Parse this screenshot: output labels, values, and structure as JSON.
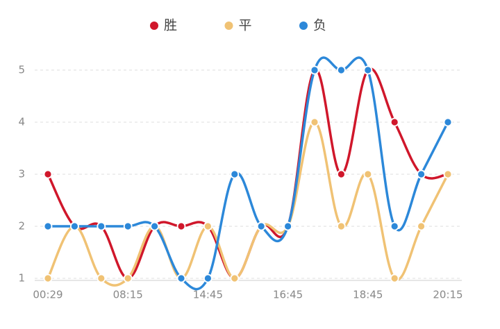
{
  "chart_data": {
    "type": "line",
    "categories": [
      "00:29",
      null,
      null,
      "08:15",
      null,
      null,
      "14:45",
      null,
      null,
      "16:45",
      null,
      null,
      "18:45",
      null,
      null,
      "20:15"
    ],
    "series": [
      {
        "name": "胜",
        "color": "#d0172b",
        "values": [
          3,
          2,
          2,
          1,
          2,
          2,
          2,
          1,
          2,
          2,
          5,
          3,
          5,
          4,
          3,
          3
        ]
      },
      {
        "name": "平",
        "color": "#f0c274",
        "values": [
          1,
          2,
          1,
          1,
          2,
          1,
          2,
          1,
          2,
          2,
          4,
          2,
          3,
          1,
          2,
          3
        ]
      },
      {
        "name": "负",
        "color": "#2c88d9",
        "values": [
          2,
          2,
          2,
          2,
          2,
          1,
          1,
          3,
          2,
          2,
          5,
          5,
          5,
          2,
          3,
          4
        ]
      }
    ],
    "ylim": [
      1,
      5
    ],
    "yticks": [
      1,
      2,
      3,
      4,
      5
    ],
    "grid": true
  }
}
